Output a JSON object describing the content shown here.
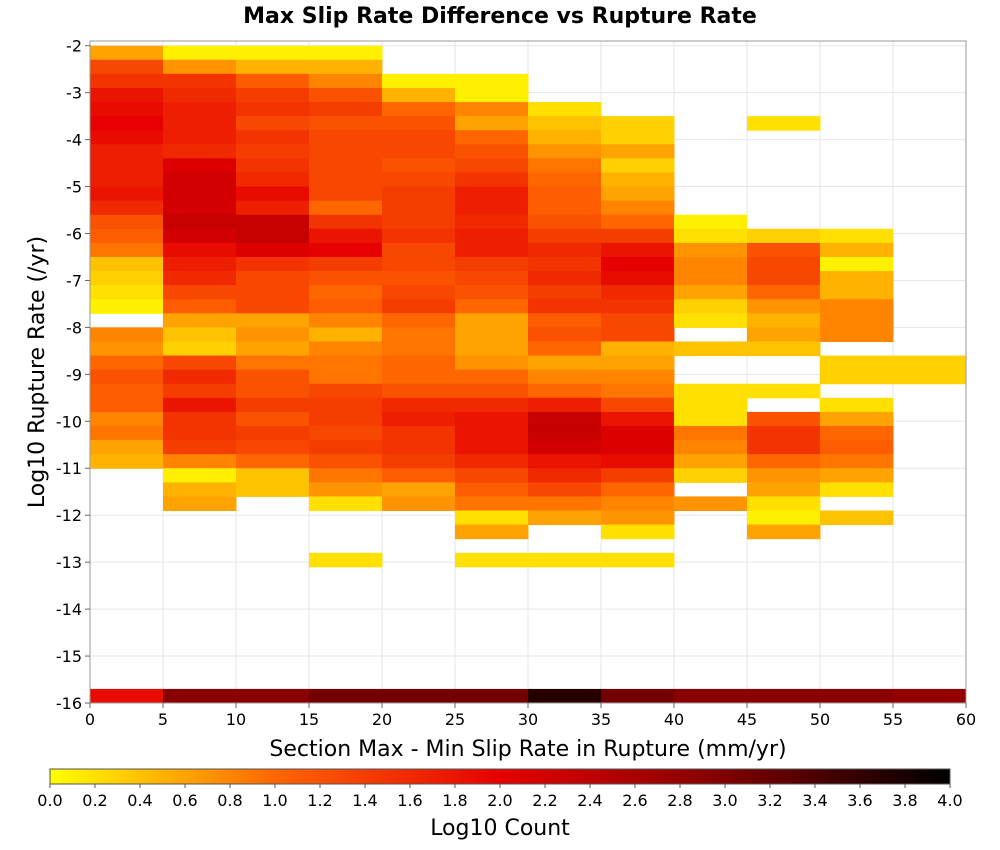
{
  "chart_data": {
    "type": "heatmap",
    "title": "Max Slip Rate Difference vs Rupture Rate",
    "xlabel": "Section Max - Min Slip Rate in Rupture (mm/yr)",
    "ylabel": "Log10 Rupture Rate (/yr)",
    "xlim": [
      0,
      60
    ],
    "ylim": [
      -16,
      -1.9
    ],
    "x_ticks": [
      "0",
      "5",
      "10",
      "15",
      "20",
      "25",
      "30",
      "35",
      "40",
      "45",
      "50",
      "55",
      "60"
    ],
    "y_ticks": [
      "-2",
      "-3",
      "-4",
      "-5",
      "-6",
      "-7",
      "-8",
      "-9",
      "-10",
      "-11",
      "-12",
      "-13",
      "-14",
      "-15",
      "-16"
    ],
    "x_bin_width": 5,
    "y_bin_height": 0.3,
    "x_bin_starts": [
      0,
      5,
      10,
      15,
      20,
      25,
      30,
      35,
      40,
      45,
      50,
      55
    ],
    "y_bin_starts": [
      -2.3,
      -2.6,
      -2.9,
      -3.2,
      -3.5,
      -3.8,
      -4.1,
      -4.4,
      -4.7,
      -5.0,
      -5.3,
      -5.6,
      -5.9,
      -6.2,
      -6.5,
      -6.8,
      -7.1,
      -7.4,
      -7.7,
      -8.0,
      -8.3,
      -8.6,
      -8.9,
      -9.2,
      -9.5,
      -9.8,
      -10.1,
      -10.4,
      -10.7,
      -11.0,
      -11.3,
      -11.6,
      -11.9,
      -12.2,
      -12.5,
      -12.8,
      -13.1
    ],
    "values": [
      [
        0.6,
        0.1,
        0.1,
        0.1,
        null,
        null,
        null,
        null,
        null,
        null,
        null,
        null
      ],
      [
        1.3,
        0.7,
        0.5,
        0.5,
        null,
        null,
        null,
        null,
        null,
        null,
        null,
        null
      ],
      [
        1.5,
        1.5,
        1.1,
        0.8,
        0.1,
        0.1,
        null,
        null,
        null,
        null,
        null,
        null
      ],
      [
        1.8,
        1.6,
        1.4,
        1.2,
        0.5,
        0.1,
        null,
        null,
        null,
        null,
        null,
        null
      ],
      [
        1.9,
        1.7,
        1.5,
        1.4,
        1.0,
        0.8,
        0.2,
        null,
        null,
        null,
        null,
        null
      ],
      [
        2.0,
        1.7,
        1.3,
        1.2,
        1.2,
        0.6,
        0.4,
        0.3,
        null,
        0.2,
        null,
        null
      ],
      [
        1.9,
        1.7,
        1.5,
        1.3,
        1.3,
        1.0,
        0.5,
        0.3,
        null,
        null,
        null,
        null
      ],
      [
        1.7,
        1.6,
        1.4,
        1.3,
        1.3,
        1.2,
        0.7,
        0.6,
        null,
        null,
        null,
        null
      ],
      [
        1.7,
        2.1,
        1.5,
        1.3,
        1.2,
        1.3,
        0.9,
        0.3,
        null,
        null,
        null,
        null
      ],
      [
        1.7,
        2.2,
        1.6,
        1.3,
        1.3,
        1.5,
        1.0,
        0.5,
        null,
        null,
        null,
        null
      ],
      [
        1.8,
        2.2,
        1.9,
        1.3,
        1.4,
        1.7,
        1.1,
        0.6,
        null,
        null,
        null,
        null
      ],
      [
        1.6,
        2.2,
        1.7,
        1.0,
        1.4,
        1.7,
        1.1,
        0.8,
        null,
        null,
        null,
        null
      ],
      [
        1.2,
        2.3,
        2.3,
        1.5,
        1.4,
        1.6,
        1.2,
        1.0,
        0.1,
        null,
        null,
        null
      ],
      [
        1.1,
        2.2,
        2.3,
        1.8,
        1.5,
        1.7,
        1.4,
        1.4,
        0.2,
        0.3,
        0.2,
        null
      ],
      [
        0.9,
        1.9,
        2.1,
        2.0,
        1.3,
        1.7,
        1.6,
        1.8,
        0.7,
        1.2,
        0.5,
        null
      ],
      [
        0.4,
        1.7,
        1.5,
        1.4,
        1.3,
        1.4,
        1.5,
        2.0,
        0.8,
        1.3,
        0.1,
        null
      ],
      [
        0.3,
        1.6,
        1.3,
        1.2,
        1.2,
        1.3,
        1.6,
        1.9,
        0.8,
        1.3,
        0.5,
        null
      ],
      [
        0.2,
        1.3,
        1.3,
        1.0,
        1.3,
        1.2,
        1.4,
        1.6,
        0.6,
        1.0,
        0.5,
        null
      ],
      [
        0.1,
        1.1,
        1.3,
        1.1,
        1.4,
        1.0,
        1.5,
        1.5,
        0.3,
        0.7,
        0.8,
        null
      ],
      [
        null,
        0.6,
        0.6,
        0.8,
        1.0,
        0.6,
        1.1,
        1.3,
        0.2,
        0.5,
        0.8,
        null
      ],
      [
        0.8,
        0.4,
        0.7,
        0.5,
        0.9,
        0.6,
        1.2,
        1.3,
        null,
        0.6,
        0.8,
        null
      ],
      [
        0.7,
        0.3,
        0.6,
        0.8,
        0.9,
        0.6,
        1.0,
        0.5,
        0.4,
        0.4,
        null,
        null
      ],
      [
        1.0,
        1.3,
        0.9,
        0.9,
        1.0,
        0.7,
        0.6,
        0.6,
        null,
        null,
        0.3,
        0.3
      ],
      [
        1.2,
        1.6,
        1.2,
        0.9,
        1.0,
        1.0,
        0.8,
        0.8,
        null,
        null,
        0.3,
        0.3
      ],
      [
        1.1,
        1.4,
        1.2,
        1.3,
        1.2,
        1.2,
        1.0,
        0.9,
        0.2,
        0.2,
        null,
        null
      ],
      [
        1.1,
        1.8,
        1.4,
        1.4,
        1.6,
        1.6,
        1.7,
        1.3,
        0.2,
        null,
        0.2,
        null
      ],
      [
        0.8,
        1.5,
        1.2,
        1.4,
        1.7,
        1.8,
        2.3,
        1.8,
        0.2,
        1.2,
        0.6,
        null
      ],
      [
        0.9,
        1.5,
        1.4,
        1.3,
        1.5,
        1.8,
        2.3,
        2.1,
        0.9,
        1.5,
        1.0,
        null
      ],
      [
        0.6,
        1.4,
        1.3,
        1.4,
        1.5,
        1.8,
        2.2,
        2.1,
        0.8,
        1.5,
        1.1,
        null
      ],
      [
        0.5,
        0.8,
        1.0,
        1.2,
        1.4,
        1.6,
        1.8,
        1.9,
        0.6,
        1.0,
        0.9,
        null
      ],
      [
        null,
        0.1,
        0.4,
        0.9,
        1.1,
        1.3,
        1.6,
        1.4,
        0.3,
        0.7,
        0.6,
        null
      ],
      [
        null,
        0.5,
        0.4,
        0.7,
        0.6,
        1.1,
        1.3,
        1.0,
        null,
        0.6,
        0.2,
        null
      ],
      [
        null,
        0.6,
        null,
        0.2,
        0.7,
        0.9,
        0.9,
        0.8,
        0.7,
        0.2,
        null,
        null
      ],
      [
        null,
        null,
        null,
        null,
        null,
        0.2,
        0.6,
        0.7,
        null,
        0.1,
        0.4,
        null
      ],
      [
        null,
        null,
        null,
        null,
        null,
        0.6,
        null,
        0.2,
        null,
        0.6,
        null,
        null
      ],
      [
        null,
        null,
        null,
        null,
        null,
        null,
        null,
        null,
        null,
        null,
        null,
        null
      ],
      [
        null,
        null,
        null,
        0.2,
        null,
        0.2,
        0.2,
        0.2,
        null,
        null,
        null,
        null
      ]
    ],
    "bottom_row": {
      "y_start": -16,
      "values": [
        1.9,
        2.9,
        2.9,
        3.1,
        3.1,
        3.1,
        3.7,
        3.1,
        2.9,
        2.9,
        2.9,
        2.8
      ]
    },
    "colorbar": {
      "label": "Log10 Count",
      "range": [
        0,
        4
      ],
      "ticks": [
        "0.0",
        "0.2",
        "0.4",
        "0.6",
        "0.8",
        "1.0",
        "1.2",
        "1.4",
        "1.6",
        "1.8",
        "2.0",
        "2.2",
        "2.4",
        "2.6",
        "2.8",
        "3.0",
        "3.2",
        "3.4",
        "3.6",
        "3.8",
        "4.0"
      ],
      "colormap": [
        "#ffff00",
        "#ff6600",
        "#e60000",
        "#800000",
        "#000000"
      ]
    },
    "grid": true,
    "legend": "colorbar-bottom"
  }
}
